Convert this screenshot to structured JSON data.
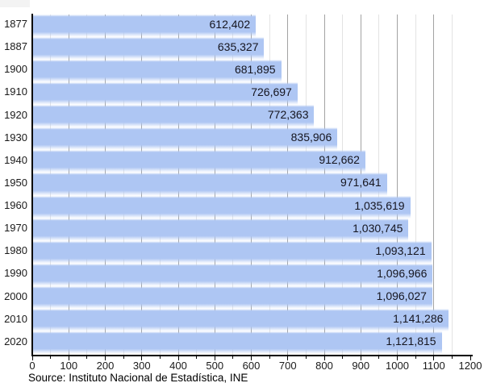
{
  "chart_data": {
    "type": "bar",
    "orientation": "horizontal",
    "title": "",
    "xlabel": "",
    "ylabel": "",
    "categories": [
      "1877",
      "1887",
      "1900",
      "1910",
      "1920",
      "1930",
      "1940",
      "1950",
      "1960",
      "1970",
      "1980",
      "1990",
      "2000",
      "2010",
      "2020"
    ],
    "values": [
      612402,
      635327,
      681895,
      726697,
      772363,
      835906,
      912662,
      971641,
      1035619,
      1030745,
      1093121,
      1096966,
      1096027,
      1141286,
      1121815
    ],
    "value_labels": [
      "612,402",
      "635,327",
      "681,895",
      "726,697",
      "772,363",
      "835,906",
      "912,662",
      "971,641",
      "1,035,619",
      "1,030,745",
      "1,093,121",
      "1,096,966",
      "1,096,027",
      "1,141,286",
      "1,121,815"
    ],
    "x_axis": {
      "min": 0,
      "max": 1200,
      "unit_scale": "thousands",
      "major_tick_step": 100,
      "minor_tick_step": 50,
      "tick_labels": [
        "0",
        "100",
        "200",
        "300",
        "400",
        "500",
        "600",
        "700",
        "800",
        "900",
        "1000",
        "1100",
        "1200"
      ]
    },
    "grid": {
      "vertical": true,
      "horizontal": false
    },
    "legend": {
      "visible": false
    },
    "source": "Source: Instituto Nacional de Estadística, INE",
    "colors": {
      "bar": "#aec6f3",
      "bar_fade": "rgba(174,198,243,0)",
      "major_grid": "#a3a3a3",
      "minor_grid": "#e3e3e3",
      "axis": "#000000",
      "value_text": "#15151f",
      "label_text": "#1a1a1a"
    }
  }
}
